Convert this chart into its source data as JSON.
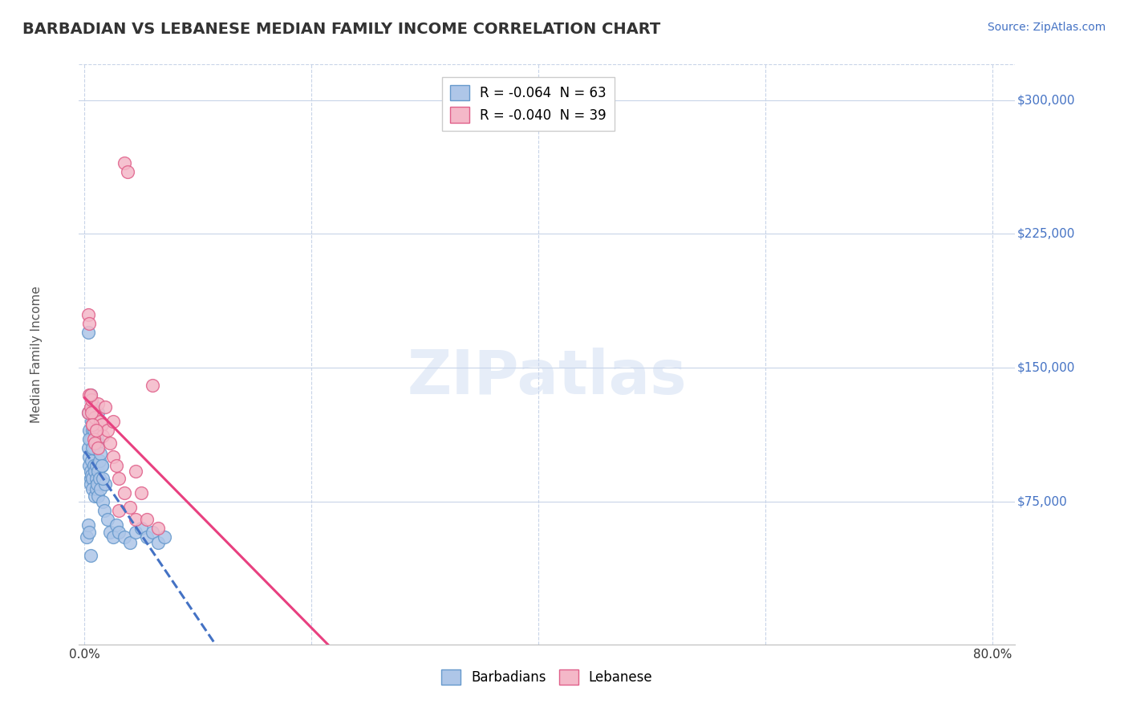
{
  "title": "BARBADIAN VS LEBANESE MEDIAN FAMILY INCOME CORRELATION CHART",
  "source": "Source: ZipAtlas.com",
  "ylabel": "Median Family Income",
  "xlim": [
    -0.005,
    0.82
  ],
  "ylim": [
    -5000,
    320000
  ],
  "xtick_positions": [
    0.0,
    0.1,
    0.2,
    0.3,
    0.4,
    0.5,
    0.6,
    0.7,
    0.8
  ],
  "xticklabels": [
    "0.0%",
    "",
    "",
    "",
    "",
    "",
    "",
    "",
    "80.0%"
  ],
  "ytick_positions": [
    75000,
    150000,
    225000,
    300000
  ],
  "ytick_labels": [
    "$75,000",
    "$150,000",
    "$225,000",
    "$300,000"
  ],
  "barbadian_fill": "#aec6e8",
  "barbadian_edge": "#6699cc",
  "lebanese_fill": "#f4b8c8",
  "lebanese_edge": "#e0608a",
  "trend_barb_color": "#4472c4",
  "trend_leb_color": "#e84080",
  "legend_label_1": "R = -0.064  N = 63",
  "legend_label_2": "R = -0.040  N = 39",
  "bottom_label_1": "Barbadians",
  "bottom_label_2": "Lebanese",
  "watermark": "ZIPatlas",
  "bg_color": "#ffffff",
  "grid_color": "#c8d4e8",
  "title_color": "#333333",
  "ytick_color": "#4472c4",
  "source_color": "#4472c4",
  "axis_label_color": "#555555",
  "barbadian_x": [
    0.002,
    0.003,
    0.003,
    0.004,
    0.004,
    0.004,
    0.005,
    0.005,
    0.005,
    0.005,
    0.006,
    0.006,
    0.006,
    0.007,
    0.007,
    0.007,
    0.008,
    0.008,
    0.009,
    0.009,
    0.01,
    0.01,
    0.01,
    0.011,
    0.011,
    0.012,
    0.012,
    0.013,
    0.014,
    0.015,
    0.016,
    0.017,
    0.018,
    0.02,
    0.022,
    0.025,
    0.028,
    0.03,
    0.035,
    0.04,
    0.045,
    0.05,
    0.055,
    0.06,
    0.065,
    0.07,
    0.003,
    0.004,
    0.005,
    0.006,
    0.007,
    0.008,
    0.009,
    0.01,
    0.011,
    0.012,
    0.013,
    0.014,
    0.015,
    0.016,
    0.003,
    0.004,
    0.005
  ],
  "barbadian_y": [
    55000,
    125000,
    105000,
    115000,
    100000,
    95000,
    110000,
    92000,
    88000,
    85000,
    120000,
    98000,
    90000,
    115000,
    88000,
    82000,
    95000,
    105000,
    92000,
    78000,
    88000,
    95000,
    82000,
    110000,
    85000,
    92000,
    78000,
    88000,
    82000,
    95000,
    75000,
    70000,
    85000,
    65000,
    58000,
    55000,
    62000,
    58000,
    55000,
    52000,
    58000,
    60000,
    55000,
    58000,
    52000,
    55000,
    170000,
    110000,
    135000,
    128000,
    105000,
    115000,
    128000,
    118000,
    108000,
    125000,
    98000,
    102000,
    95000,
    88000,
    62000,
    58000,
    45000
  ],
  "lebanese_x": [
    0.003,
    0.004,
    0.005,
    0.006,
    0.007,
    0.008,
    0.009,
    0.01,
    0.012,
    0.014,
    0.015,
    0.016,
    0.018,
    0.02,
    0.022,
    0.025,
    0.028,
    0.03,
    0.035,
    0.04,
    0.045,
    0.05,
    0.035,
    0.038,
    0.003,
    0.004,
    0.005,
    0.006,
    0.007,
    0.008,
    0.009,
    0.01,
    0.012,
    0.06,
    0.045,
    0.025,
    0.03,
    0.055,
    0.065
  ],
  "lebanese_y": [
    125000,
    135000,
    128000,
    132000,
    118000,
    125000,
    122000,
    115000,
    130000,
    120000,
    118000,
    112000,
    128000,
    115000,
    108000,
    100000,
    95000,
    88000,
    80000,
    72000,
    65000,
    80000,
    265000,
    260000,
    180000,
    175000,
    135000,
    125000,
    118000,
    110000,
    108000,
    115000,
    105000,
    140000,
    92000,
    120000,
    70000,
    65000,
    60000
  ]
}
